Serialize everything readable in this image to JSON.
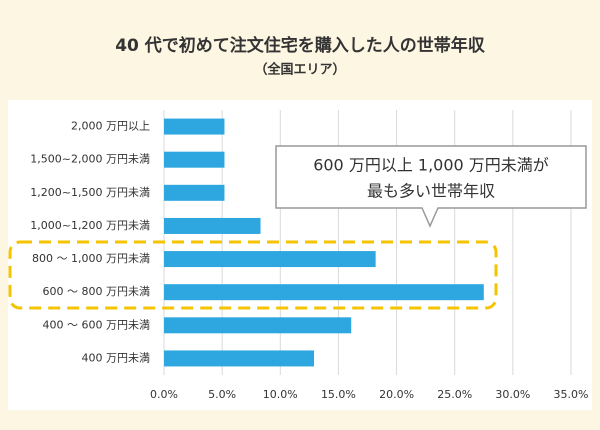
{
  "chart_data": {
    "type": "bar",
    "orientation": "horizontal",
    "title": "40 代で初めて注文住宅を購入した人の世帯年収",
    "subtitle": "（全国エリア）",
    "categories": [
      "2,000 万円以上",
      "1,500~2,000 万円未満",
      "1,200~1,500 万円未満",
      "1,000~1,200 万円未満",
      "800 ～ 1,000 万円未満",
      "600 ～ 800 万円未満",
      "400 ～ 600 万円未満",
      "400 万円未満"
    ],
    "values": [
      5.2,
      5.2,
      5.2,
      8.3,
      18.2,
      27.5,
      16.1,
      12.9
    ],
    "color": "#2ea7e0",
    "xlim": [
      0,
      35
    ],
    "xticks": [
      {
        "value": 0,
        "label": "0.0%"
      },
      {
        "value": 5,
        "label": "5.0%"
      },
      {
        "value": 10,
        "label": "10.0%"
      },
      {
        "value": 15,
        "label": "15.0%"
      },
      {
        "value": 20,
        "label": "20.0%"
      },
      {
        "value": 25,
        "label": "25.0%"
      },
      {
        "value": 30,
        "label": "30.0%"
      },
      {
        "value": 35,
        "label": "35.0%"
      }
    ],
    "grid": true,
    "annotation": [
      "600 万円以上 1,000 万円未満が",
      "最も多い世帯年収"
    ]
  }
}
